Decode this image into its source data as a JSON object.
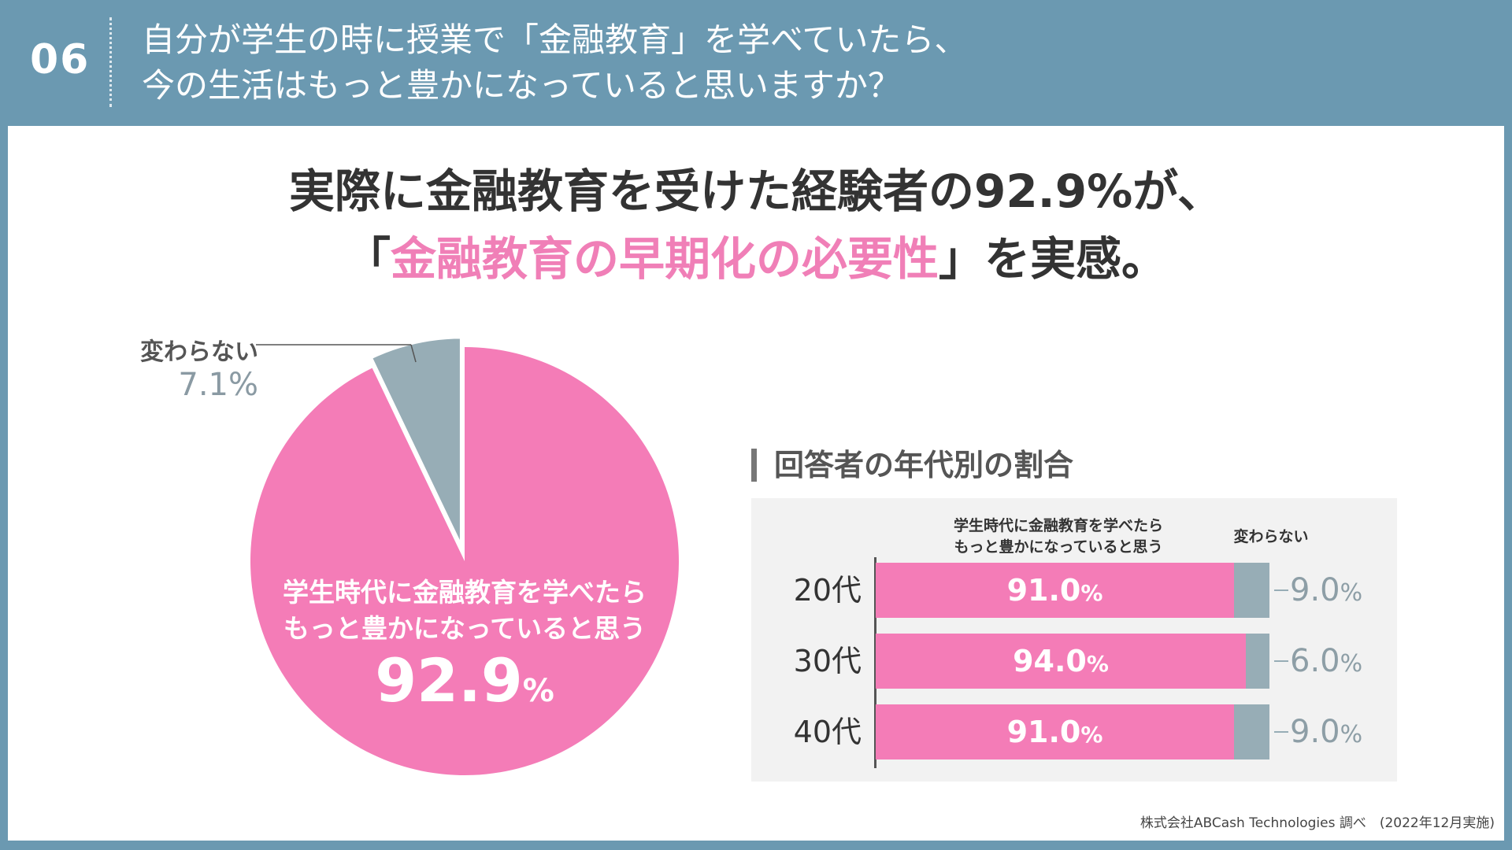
{
  "header": {
    "number": "06",
    "question_line1": "自分が学生の時に授業で「金融教育」を学べていたら、",
    "question_line2": "今の生活はもっと豊かになっていると思いますか？"
  },
  "headline": {
    "line1": "実際に金融教育を受けた経験者の92.9%が、",
    "line2_open": "「",
    "line2_highlight": "金融教育の早期化の必要性",
    "line2_close": "」を実感。"
  },
  "colors": {
    "pink": "#f47cb7",
    "gray": "#97adb6",
    "header_bg": "#6b99b1"
  },
  "chart_data": [
    {
      "type": "pie",
      "labels": [
        "学生時代に金融教育を学べたらもっと豊かになっていると思う",
        "変わらない"
      ],
      "values": [
        92.9,
        7.1
      ],
      "value_labels": [
        "92.9%",
        "7.1%"
      ],
      "slice_label_line1": "学生時代に金融教育を学べたら",
      "slice_label_line2": "もっと豊かになっていると思う",
      "slice_value": "92.9",
      "other_label": "変わらない",
      "other_value": "7.1%",
      "colors": [
        "#f47cb7",
        "#97adb6"
      ]
    },
    {
      "type": "bar",
      "orientation": "horizontal",
      "stacked": true,
      "title": "回答者の年代別の割合",
      "categories": [
        "20代",
        "30代",
        "40代"
      ],
      "series": [
        {
          "name": "学生時代に金融教育を学べたら もっと豊かになっていると思う",
          "name_line1": "学生時代に金融教育を学べたら",
          "name_line2": "もっと豊かになっていると思う",
          "values": [
            91.0,
            94.0,
            91.0
          ],
          "labels": [
            "91.0",
            "94.0",
            "91.0"
          ],
          "color": "#f47cb7"
        },
        {
          "name": "変わらない",
          "values": [
            9.0,
            6.0,
            9.0
          ],
          "labels": [
            "9.0",
            "6.0",
            "9.0"
          ],
          "color": "#97adb6"
        }
      ],
      "unit": "%",
      "xlim": [
        0,
        100
      ]
    }
  ],
  "source": "株式会社ABCash Technologies 調べ　(2022年12月実施)"
}
